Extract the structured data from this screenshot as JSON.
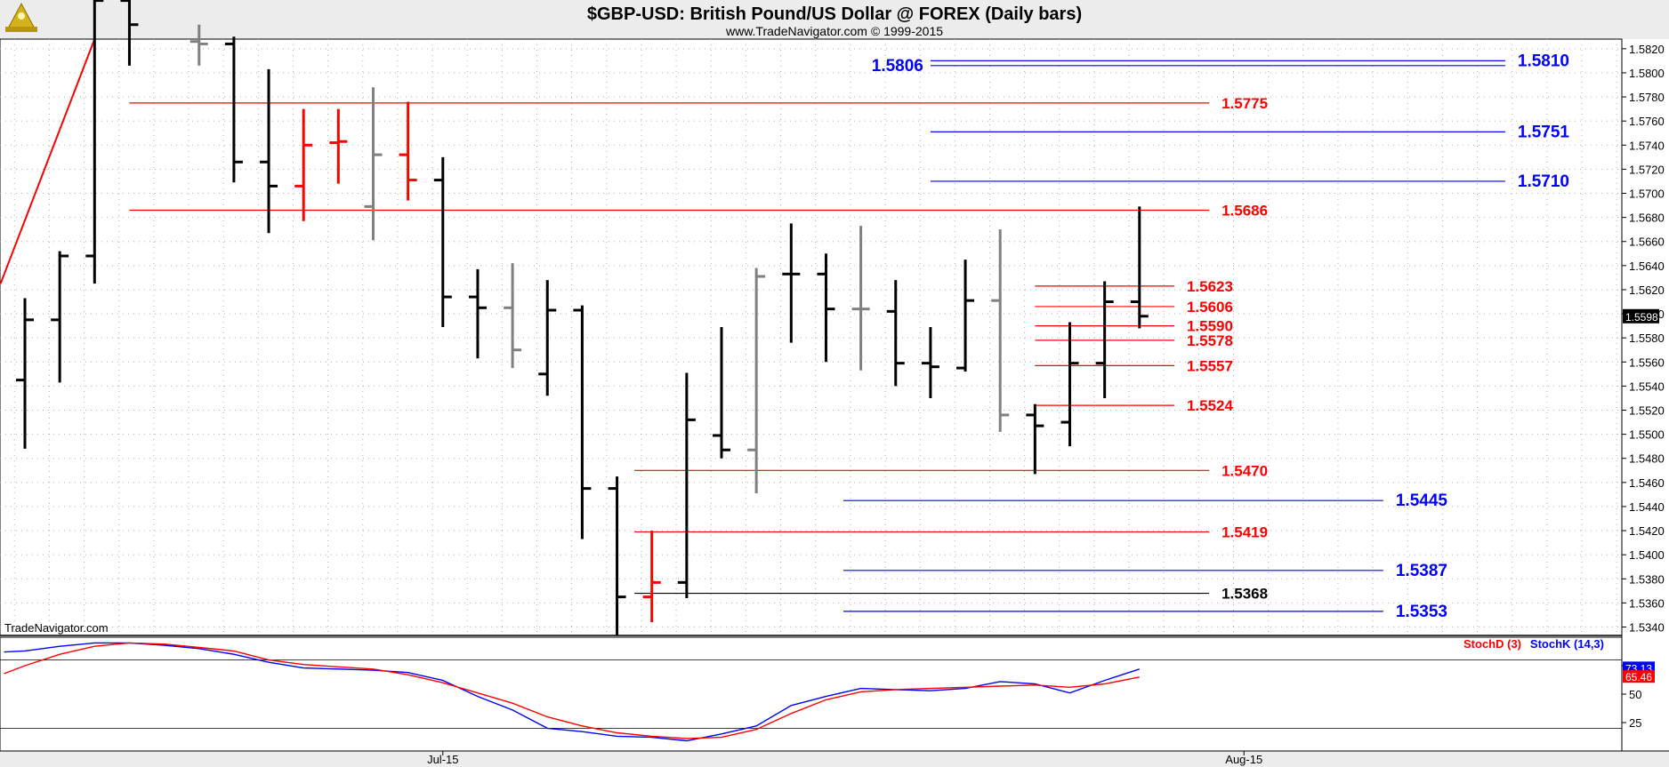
{
  "header": {
    "title": "$GBP-USD:  British Pound/US Dollar @ FOREX  (Daily bars)",
    "subtitle": "www.TradeNavigator.com © 1999-2015",
    "logo_icon": "trade-navigator-logo-icon"
  },
  "watermark": "TradeNavigator.com",
  "colors": {
    "up_bar": "#000000",
    "down_bar": "#ff0000",
    "neutral_bar": "#808080",
    "red_level": "#ff0000",
    "blue_level": "#0000ff",
    "black_level": "#000000",
    "last_price_bg": "#000000",
    "stoch_d": "#ff0000",
    "stoch_k": "#0000ff"
  },
  "chart_data": [
    {
      "type": "ohlc",
      "title": "$GBP-USD:  British Pound/US Dollar @ FOREX  (Daily bars)",
      "y_axis": {
        "side": "right",
        "ylim": [
          1.5333,
          1.5828
        ],
        "ticks": [
          "1.5820",
          "1.5800",
          "1.5780",
          "1.5760",
          "1.5740",
          "1.5720",
          "1.5700",
          "1.5680",
          "1.5660",
          "1.5640",
          "1.5620",
          "1.5600",
          "1.5580",
          "1.5560",
          "1.5540",
          "1.5520",
          "1.5500",
          "1.5480",
          "1.5460",
          "1.5440",
          "1.5420",
          "1.5400",
          "1.5380",
          "1.5360",
          "1.5340"
        ]
      },
      "x_axis": {
        "tick_labels": [
          {
            "label": "Jul-15",
            "bar_index": 12
          },
          {
            "label": "Aug-15",
            "bar_index": 35
          }
        ]
      },
      "grid": "dotted",
      "last_price": "1.5598",
      "bars": [
        {
          "i": 0,
          "o": 1.5545,
          "h": 1.5613,
          "l": 1.5488,
          "c": 1.5595,
          "color": "up"
        },
        {
          "i": 1,
          "o": 1.5595,
          "h": 1.5652,
          "l": 1.5543,
          "c": 1.5648,
          "color": "up"
        },
        {
          "i": 2,
          "o": 1.5648,
          "h": 1.588,
          "l": 1.5625,
          "c": 1.586,
          "color": "up"
        },
        {
          "i": 3,
          "o": 1.586,
          "h": 1.588,
          "l": 1.5806,
          "c": 1.584,
          "color": "up"
        },
        {
          "i": 5,
          "o": 1.5826,
          "h": 1.584,
          "l": 1.5806,
          "c": 1.5824,
          "color": "neutral"
        },
        {
          "i": 6,
          "o": 1.5824,
          "h": 1.583,
          "l": 1.5709,
          "c": 1.5726,
          "color": "up"
        },
        {
          "i": 7,
          "o": 1.5726,
          "h": 1.5803,
          "l": 1.5667,
          "c": 1.5706,
          "color": "up"
        },
        {
          "i": 8,
          "o": 1.5706,
          "h": 1.577,
          "l": 1.5677,
          "c": 1.574,
          "color": "down"
        },
        {
          "i": 9,
          "o": 1.5742,
          "h": 1.577,
          "l": 1.5708,
          "c": 1.5743,
          "color": "down"
        },
        {
          "i": 10,
          "o": 1.5689,
          "h": 1.5788,
          "l": 1.5661,
          "c": 1.5732,
          "color": "neutral"
        },
        {
          "i": 11,
          "o": 1.5732,
          "h": 1.5776,
          "l": 1.5694,
          "c": 1.5711,
          "color": "down"
        },
        {
          "i": 12,
          "o": 1.5711,
          "h": 1.573,
          "l": 1.5589,
          "c": 1.5614,
          "color": "up"
        },
        {
          "i": 13,
          "o": 1.5614,
          "h": 1.5637,
          "l": 1.5563,
          "c": 1.5605,
          "color": "up"
        },
        {
          "i": 14,
          "o": 1.5605,
          "h": 1.5642,
          "l": 1.5555,
          "c": 1.557,
          "color": "neutral"
        },
        {
          "i": 15,
          "o": 1.555,
          "h": 1.5628,
          "l": 1.5532,
          "c": 1.5603,
          "color": "up"
        },
        {
          "i": 16,
          "o": 1.5603,
          "h": 1.5607,
          "l": 1.5413,
          "c": 1.5455,
          "color": "up"
        },
        {
          "i": 17,
          "o": 1.5455,
          "h": 1.5465,
          "l": 1.5333,
          "c": 1.5365,
          "color": "up"
        },
        {
          "i": 18,
          "o": 1.5365,
          "h": 1.542,
          "l": 1.5344,
          "c": 1.5377,
          "color": "down"
        },
        {
          "i": 19,
          "o": 1.5377,
          "h": 1.5551,
          "l": 1.5364,
          "c": 1.5512,
          "color": "up"
        },
        {
          "i": 20,
          "o": 1.5499,
          "h": 1.5589,
          "l": 1.548,
          "c": 1.5487,
          "color": "up"
        },
        {
          "i": 21,
          "o": 1.5487,
          "h": 1.5638,
          "l": 1.5451,
          "c": 1.5631,
          "color": "neutral"
        },
        {
          "i": 22,
          "o": 1.5633,
          "h": 1.5675,
          "l": 1.5576,
          "c": 1.5633,
          "color": "up"
        },
        {
          "i": 23,
          "o": 1.5633,
          "h": 1.565,
          "l": 1.556,
          "c": 1.5604,
          "color": "up"
        },
        {
          "i": 24,
          "o": 1.5604,
          "h": 1.5673,
          "l": 1.5553,
          "c": 1.5604,
          "color": "neutral"
        },
        {
          "i": 25,
          "o": 1.5602,
          "h": 1.5628,
          "l": 1.554,
          "c": 1.5559,
          "color": "up"
        },
        {
          "i": 26,
          "o": 1.5559,
          "h": 1.5589,
          "l": 1.553,
          "c": 1.5556,
          "color": "up"
        },
        {
          "i": 27,
          "o": 1.5555,
          "h": 1.5645,
          "l": 1.5552,
          "c": 1.5611,
          "color": "up"
        },
        {
          "i": 28,
          "o": 1.5611,
          "h": 1.567,
          "l": 1.5502,
          "c": 1.5516,
          "color": "neutral"
        },
        {
          "i": 29,
          "o": 1.5516,
          "h": 1.5525,
          "l": 1.5467,
          "c": 1.5507,
          "color": "up"
        },
        {
          "i": 30,
          "o": 1.551,
          "h": 1.5593,
          "l": 1.549,
          "c": 1.5559,
          "color": "up"
        },
        {
          "i": 31,
          "o": 1.5559,
          "h": 1.5627,
          "l": 1.553,
          "c": 1.561,
          "color": "up"
        },
        {
          "i": 32,
          "o": 1.561,
          "h": 1.5689,
          "l": 1.5588,
          "c": 1.5598,
          "color": "up"
        }
      ],
      "trendline": {
        "color": "red",
        "from": {
          "i": -0.7,
          "y": 1.5625
        },
        "to": {
          "i": 2.0,
          "y": 1.5828
        }
      },
      "levels": [
        {
          "value": 1.5806,
          "label": "1.5806",
          "color": "blue",
          "label_side": "left",
          "from_i": 26,
          "to_i": 42.5
        },
        {
          "value": 1.581,
          "label": "1.5810",
          "color": "blue",
          "label_side": "right",
          "from_i": 26,
          "to_i": 42.5
        },
        {
          "value": 1.5775,
          "label": "1.5775",
          "color": "red",
          "label_side": "right",
          "from_i": 3,
          "to_i": 34
        },
        {
          "value": 1.5751,
          "label": "1.5751",
          "color": "blue",
          "label_side": "right",
          "from_i": 26,
          "to_i": 42.5
        },
        {
          "value": 1.571,
          "label": "1.5710",
          "color": "blue",
          "label_side": "right",
          "from_i": 26,
          "to_i": 42.5
        },
        {
          "value": 1.5686,
          "label": "1.5686",
          "color": "red",
          "label_side": "right",
          "from_i": 3,
          "to_i": 34
        },
        {
          "value": 1.5623,
          "label": "1.5623",
          "color": "red",
          "label_side": "right",
          "from_i": 29,
          "to_i": 33
        },
        {
          "value": 1.5606,
          "label": "1.5606",
          "color": "red",
          "label_side": "right",
          "from_i": 29,
          "to_i": 33
        },
        {
          "value": 1.559,
          "label": "1.5590",
          "color": "red",
          "label_side": "right",
          "from_i": 29,
          "to_i": 33
        },
        {
          "value": 1.5578,
          "label": "1.5578",
          "color": "red",
          "label_side": "right",
          "from_i": 29,
          "to_i": 33
        },
        {
          "value": 1.5557,
          "label": "1.5557",
          "color": "red",
          "label_side": "right",
          "from_i": 29,
          "to_i": 33
        },
        {
          "value": 1.5524,
          "label": "1.5524",
          "color": "red",
          "label_side": "right",
          "from_i": 29,
          "to_i": 33
        },
        {
          "value": 1.547,
          "label": "1.5470",
          "color": "red",
          "label_side": "right",
          "from_i": 17.5,
          "to_i": 34
        },
        {
          "value": 1.5445,
          "label": "1.5445",
          "color": "blue",
          "label_side": "right",
          "from_i": 23.5,
          "to_i": 39
        },
        {
          "value": 1.5419,
          "label": "1.5419",
          "color": "red",
          "label_side": "right",
          "from_i": 17.5,
          "to_i": 34
        },
        {
          "value": 1.5387,
          "label": "1.5387",
          "color": "blue",
          "label_side": "right",
          "from_i": 23.5,
          "to_i": 39
        },
        {
          "value": 1.5368,
          "label": "1.5368",
          "color": "black",
          "label_side": "right",
          "from_i": 17.5,
          "to_i": 34
        },
        {
          "value": 1.5353,
          "label": "1.5353",
          "color": "blue",
          "label_side": "right",
          "from_i": 23.5,
          "to_i": 39
        }
      ]
    },
    {
      "type": "line",
      "panel": "stochastic",
      "ylim": [
        0,
        100
      ],
      "y_ticks": [
        "75",
        "50",
        "25"
      ],
      "reference_lines": [
        80,
        20
      ],
      "legend": [
        "StochD (3)",
        "StochK (14,3)"
      ],
      "last_values": {
        "StochD (3)": "65.46",
        "StochK (14,3)": "73.13"
      },
      "x": [
        -0.6,
        0,
        1,
        2,
        3,
        4,
        5,
        6,
        7,
        8,
        9,
        10,
        11,
        12,
        13,
        14,
        15,
        16,
        17,
        18,
        19,
        20,
        21,
        22,
        23,
        24,
        25,
        26,
        27,
        28,
        29,
        30,
        31,
        32
      ],
      "series": [
        {
          "name": "StochK (14,3)",
          "color": "blue",
          "values": [
            87,
            88,
            92,
            95,
            95,
            93,
            90,
            85,
            78,
            73,
            72,
            71,
            69,
            62,
            48,
            36,
            20,
            17,
            13,
            12,
            9,
            15,
            22,
            40,
            48,
            55,
            54,
            53,
            55,
            61,
            59,
            51,
            62,
            72
          ]
        },
        {
          "name": "StochD (3)",
          "color": "red",
          "values": [
            68,
            75,
            85,
            92,
            95,
            94,
            91,
            88,
            80,
            76,
            74,
            72,
            67,
            60,
            51,
            42,
            30,
            22,
            16,
            13,
            11,
            12,
            19,
            33,
            45,
            52,
            54,
            55,
            56,
            57,
            58,
            56,
            59,
            65
          ]
        }
      ]
    }
  ]
}
